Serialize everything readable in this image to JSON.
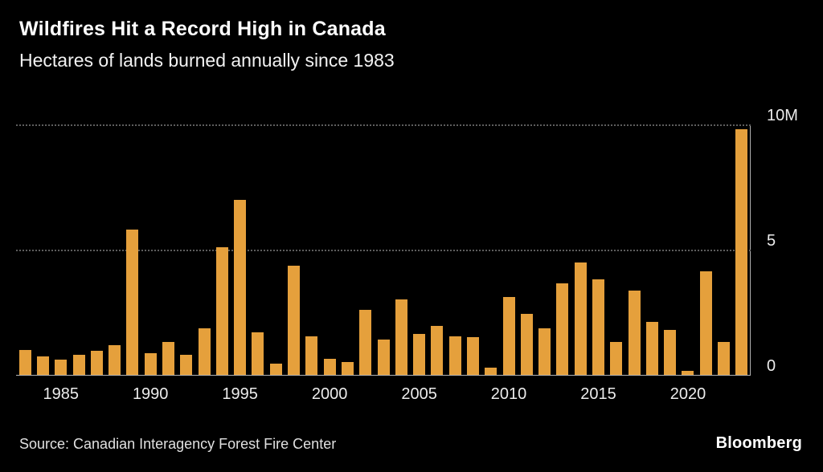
{
  "header": {
    "title": "Wildfires Hit a Record High in Canada",
    "subtitle": "Hectares of lands burned annually since 1983"
  },
  "footer": {
    "source": "Source: Canadian Interagency Forest Fire Center",
    "brand": "Bloomberg"
  },
  "chart_data": {
    "type": "bar",
    "title": "Wildfires Hit a Record High in Canada",
    "subtitle": "Hectares of lands burned annually since 1983",
    "unit": "millions of hectares burned per year",
    "categories": [
      1983,
      1984,
      1985,
      1986,
      1987,
      1988,
      1989,
      1990,
      1991,
      1992,
      1993,
      1994,
      1995,
      1996,
      1997,
      1998,
      1999,
      2000,
      2001,
      2002,
      2003,
      2004,
      2005,
      2006,
      2007,
      2008,
      2009,
      2010,
      2011,
      2012,
      2013,
      2014,
      2015,
      2016,
      2017,
      2018,
      2019,
      2020,
      2021,
      2022,
      2023
    ],
    "values": [
      1.0,
      0.75,
      0.6,
      0.8,
      0.95,
      1.2,
      5.8,
      0.85,
      1.3,
      0.8,
      1.85,
      5.1,
      7.0,
      1.7,
      0.45,
      4.35,
      1.55,
      0.65,
      0.5,
      2.6,
      1.4,
      3.0,
      1.65,
      1.95,
      1.55,
      1.5,
      0.3,
      3.1,
      2.45,
      1.85,
      3.65,
      4.5,
      3.8,
      1.3,
      3.35,
      2.1,
      1.8,
      0.15,
      4.15,
      1.3,
      9.8
    ],
    "xlabel": "",
    "ylabel": "",
    "ylim": [
      0,
      10
    ],
    "yticks": [
      0,
      5,
      10
    ],
    "ytick_labels": [
      "0",
      "5",
      "10M"
    ],
    "xticks": [
      1985,
      1990,
      1995,
      2000,
      2005,
      2010,
      2015,
      2020
    ],
    "bar_color": "#e5a03c",
    "grid": "horizontal dotted at 5 and 10, solid baseline at 0",
    "legend_position": "none",
    "background_color": "#000000"
  }
}
